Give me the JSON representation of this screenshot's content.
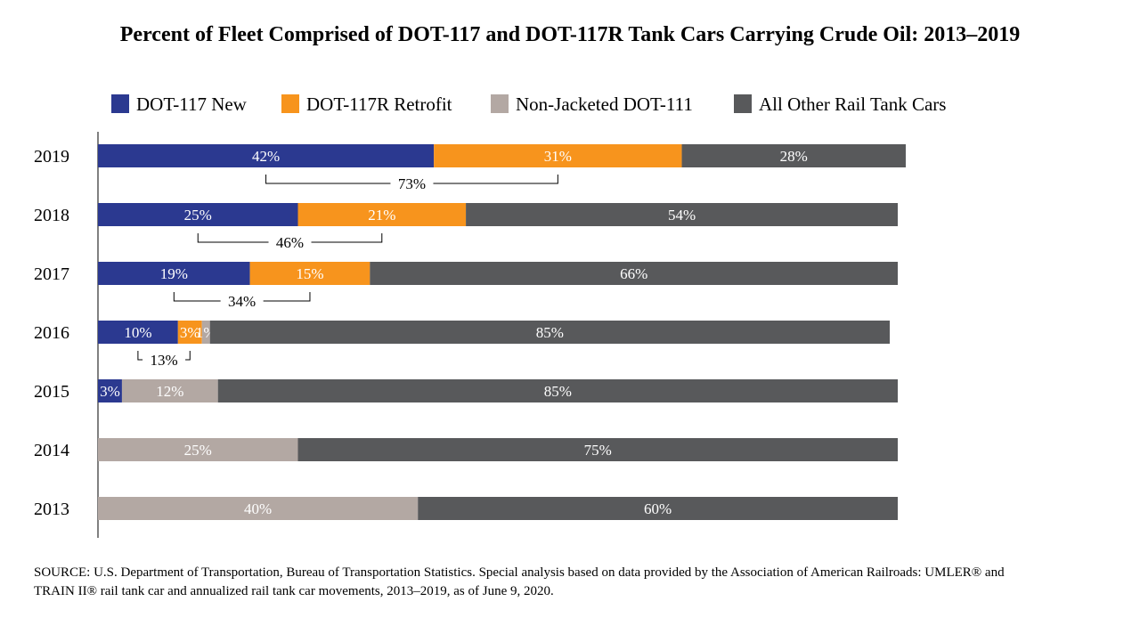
{
  "chart_data": {
    "type": "bar",
    "orientation": "horizontal",
    "stacked": true,
    "title": "Percent of Fleet Comprised of DOT-117 and DOT-117R Tank Cars Carrying Crude Oil: 2013–2019",
    "categories": [
      "2019",
      "2018",
      "2017",
      "2016",
      "2015",
      "2014",
      "2013"
    ],
    "series": [
      {
        "name": "DOT-117 New",
        "color": "#2b3990",
        "values": [
          42,
          25,
          19,
          10,
          3,
          0,
          0
        ],
        "labels": [
          "42%",
          "25%",
          "19%",
          "10%",
          "3%",
          "",
          ""
        ]
      },
      {
        "name": "DOT-117R Retrofit",
        "color": "#f7941d",
        "values": [
          31,
          21,
          15,
          3,
          0,
          0,
          0
        ],
        "labels": [
          "31%",
          "21%",
          "15%",
          "3%",
          "",
          "",
          ""
        ]
      },
      {
        "name": "Non-Jacketed DOT-111",
        "color": "#b3a8a3",
        "values": [
          0,
          0,
          0,
          1,
          12,
          25,
          40
        ],
        "labels": [
          "",
          "",
          "",
          "1%",
          "12%",
          "25%",
          "40%"
        ]
      },
      {
        "name": "All Other Rail Tank Cars",
        "color": "#58595b",
        "values": [
          28,
          54,
          66,
          85,
          85,
          75,
          60
        ],
        "labels": [
          "28%",
          "54%",
          "66%",
          "85%",
          "85%",
          "75%",
          "60%"
        ]
      }
    ],
    "combined_annotations": [
      {
        "category": "2019",
        "label": "73%"
      },
      {
        "category": "2018",
        "label": "46%"
      },
      {
        "category": "2017",
        "label": "34%"
      },
      {
        "category": "2016",
        "label": "13%"
      }
    ],
    "xlim": [
      0,
      100
    ],
    "grid": false,
    "legend_position": "top"
  },
  "source_note": "SOURCE: U.S. Department of Transportation, Bureau of Transportation Statistics. Special analysis based on data provided by the Association of American Railroads: UMLER® and TRAIN II® rail tank car and annualized rail tank car movements, 2013–2019, as of June 9, 2020."
}
